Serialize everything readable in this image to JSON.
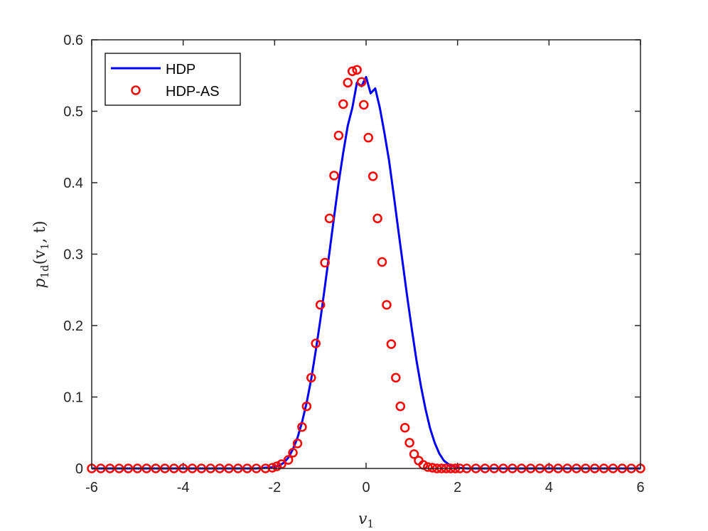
{
  "chart_data": {
    "type": "line",
    "title": "",
    "xlabel": "v",
    "xlabel_sub": "1",
    "ylabel": "p",
    "ylabel_sub": "1d",
    "ylabel_args": "(v",
    "ylabel_args_sub": "1",
    "ylabel_tail": ", t)",
    "xlim": [
      -6,
      6
    ],
    "ylim": [
      0,
      0.6
    ],
    "xticks": [
      -6,
      -4,
      -2,
      0,
      2,
      4,
      6
    ],
    "xtick_labels": [
      "-6",
      "-4",
      "-2",
      "0",
      "2",
      "4",
      "6"
    ],
    "yticks": [
      0,
      0.1,
      0.2,
      0.3,
      0.4,
      0.5,
      0.6
    ],
    "ytick_labels": [
      "0",
      "0.1",
      "0.2",
      "0.3",
      "0.4",
      "0.5",
      "0.6"
    ],
    "grid": false,
    "legend_position": "top-left",
    "series": [
      {
        "name": "HDP",
        "style": "line",
        "color": "#0000ff",
        "x": [
          -6.0,
          -2.4,
          -2.2,
          -2.0,
          -1.9,
          -1.8,
          -1.7,
          -1.6,
          -1.5,
          -1.4,
          -1.3,
          -1.2,
          -1.1,
          -1.0,
          -0.9,
          -0.8,
          -0.7,
          -0.6,
          -0.5,
          -0.4,
          -0.3,
          -0.2,
          -0.1,
          0.0,
          0.1,
          0.2,
          0.3,
          0.4,
          0.5,
          0.6,
          0.7,
          0.8,
          0.9,
          1.0,
          1.1,
          1.2,
          1.3,
          1.4,
          1.5,
          1.6,
          1.7,
          1.8,
          1.9,
          2.0,
          2.2,
          2.4,
          6.0
        ],
        "y": [
          0,
          0,
          0.001,
          0.002,
          0.004,
          0.008,
          0.015,
          0.027,
          0.043,
          0.065,
          0.092,
          0.125,
          0.165,
          0.208,
          0.255,
          0.303,
          0.352,
          0.4,
          0.442,
          0.48,
          0.505,
          0.54,
          0.535,
          0.548,
          0.525,
          0.532,
          0.505,
          0.47,
          0.432,
          0.385,
          0.336,
          0.288,
          0.24,
          0.195,
          0.152,
          0.115,
          0.083,
          0.056,
          0.036,
          0.021,
          0.011,
          0.006,
          0.003,
          0.001,
          0,
          0,
          0
        ]
      },
      {
        "name": "HDP-AS",
        "style": "markers",
        "marker": "circle",
        "color": "#ff0000",
        "x": [
          -6.0,
          -5.8,
          -5.6,
          -5.4,
          -5.2,
          -5.0,
          -4.8,
          -4.6,
          -4.4,
          -4.2,
          -4.0,
          -3.8,
          -3.6,
          -3.4,
          -3.2,
          -3.0,
          -2.8,
          -2.6,
          -2.4,
          -2.2,
          -2.05,
          -1.95,
          -1.85,
          -1.7,
          -1.6,
          -1.5,
          -1.4,
          -1.3,
          -1.2,
          -1.1,
          -1.0,
          -0.9,
          -0.8,
          -0.7,
          -0.6,
          -0.5,
          -0.4,
          -0.3,
          -0.2,
          -0.1,
          -0.05,
          0.05,
          0.15,
          0.25,
          0.35,
          0.45,
          0.55,
          0.65,
          0.75,
          0.85,
          0.95,
          1.05,
          1.15,
          1.25,
          1.35,
          1.45,
          1.55,
          1.65,
          1.75,
          1.85,
          1.95,
          2.05,
          2.2,
          2.4,
          2.6,
          2.8,
          3.0,
          3.2,
          3.4,
          3.6,
          3.8,
          4.0,
          4.2,
          4.4,
          4.6,
          4.8,
          5.0,
          5.2,
          5.4,
          5.6,
          5.8,
          6.0
        ],
        "y": [
          0,
          0,
          0,
          0,
          0,
          0,
          0,
          0,
          0,
          0,
          0,
          0,
          0,
          0,
          0,
          0,
          0,
          0,
          0,
          0,
          0.001,
          0.003,
          0.006,
          0.012,
          0.022,
          0.035,
          0.058,
          0.087,
          0.127,
          0.175,
          0.229,
          0.288,
          0.35,
          0.41,
          0.466,
          0.51,
          0.54,
          0.556,
          0.558,
          0.541,
          0.509,
          0.463,
          0.409,
          0.35,
          0.289,
          0.229,
          0.174,
          0.127,
          0.087,
          0.057,
          0.036,
          0.02,
          0.011,
          0.005,
          0.002,
          0.001,
          0,
          0,
          0,
          0,
          0,
          0,
          0,
          0,
          0,
          0,
          0,
          0,
          0,
          0,
          0,
          0,
          0,
          0,
          0,
          0,
          0,
          0,
          0,
          0,
          0,
          0
        ]
      }
    ]
  }
}
